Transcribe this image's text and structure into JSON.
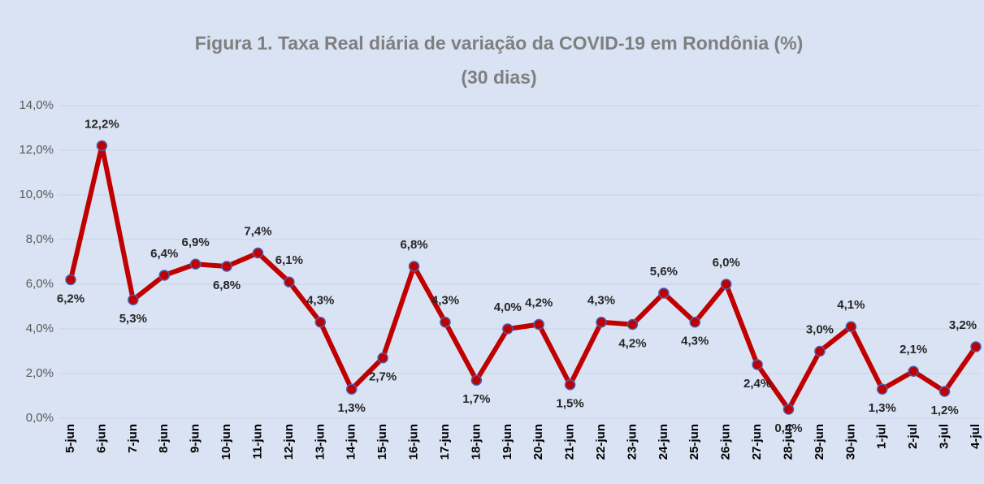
{
  "chart_data": {
    "type": "line",
    "title": "Figura 1. Taxa Real diária de variação da COVID-19 em Rondônia (%)",
    "subtitle": "(30 dias)",
    "categories": [
      "5-jun",
      "6-jun",
      "7-jun",
      "8-jun",
      "9-jun",
      "10-jun",
      "11-jun",
      "12-jun",
      "13-jun",
      "14-jun",
      "15-jun",
      "16-jun",
      "17-jun",
      "18-jun",
      "19-jun",
      "20-jun",
      "21-jun",
      "22-jun",
      "23-jun",
      "24-jun",
      "25-jun",
      "26-jun",
      "27-jun",
      "28-jun",
      "29-jun",
      "30-jun",
      "1-jul",
      "2-jul",
      "3-jul",
      "4-jul"
    ],
    "values": [
      6.2,
      12.2,
      5.3,
      6.4,
      6.9,
      6.8,
      7.4,
      6.1,
      4.3,
      1.3,
      2.7,
      6.8,
      4.3,
      1.7,
      4.0,
      4.2,
      1.5,
      4.3,
      4.2,
      5.6,
      4.3,
      6.0,
      2.4,
      0.4,
      3.0,
      4.1,
      1.3,
      2.1,
      1.2,
      3.2
    ],
    "value_labels": [
      "6,2%",
      "12,2%",
      "5,3%",
      "6,4%",
      "6,9%",
      "6,8%",
      "7,4%",
      "6,1%",
      "4,3%",
      "1,3%",
      "2,7%",
      "6,8%",
      "4,3%",
      "1,7%",
      "4,0%",
      "4,2%",
      "1,5%",
      "4,3%",
      "4,2%",
      "5,6%",
      "4,3%",
      "6,0%",
      "2,4%",
      "0,4%",
      "3,0%",
      "4,1%",
      "1,3%",
      "2,1%",
      "1,2%",
      "3,2%"
    ],
    "color": "#c00000",
    "marker_edge_color": "#4a5fb0",
    "ylim": [
      0,
      14
    ],
    "yticks": [
      {
        "value": 0,
        "label": "0,0%"
      },
      {
        "value": 2,
        "label": "2,0%"
      },
      {
        "value": 4,
        "label": "4,0%"
      },
      {
        "value": 6,
        "label": "6,0%"
      },
      {
        "value": 8,
        "label": "8,0%"
      },
      {
        "value": 10,
        "label": "10,0%"
      },
      {
        "value": 12,
        "label": "12,0%"
      },
      {
        "value": 14,
        "label": "14,0%"
      }
    ],
    "grid": true
  }
}
